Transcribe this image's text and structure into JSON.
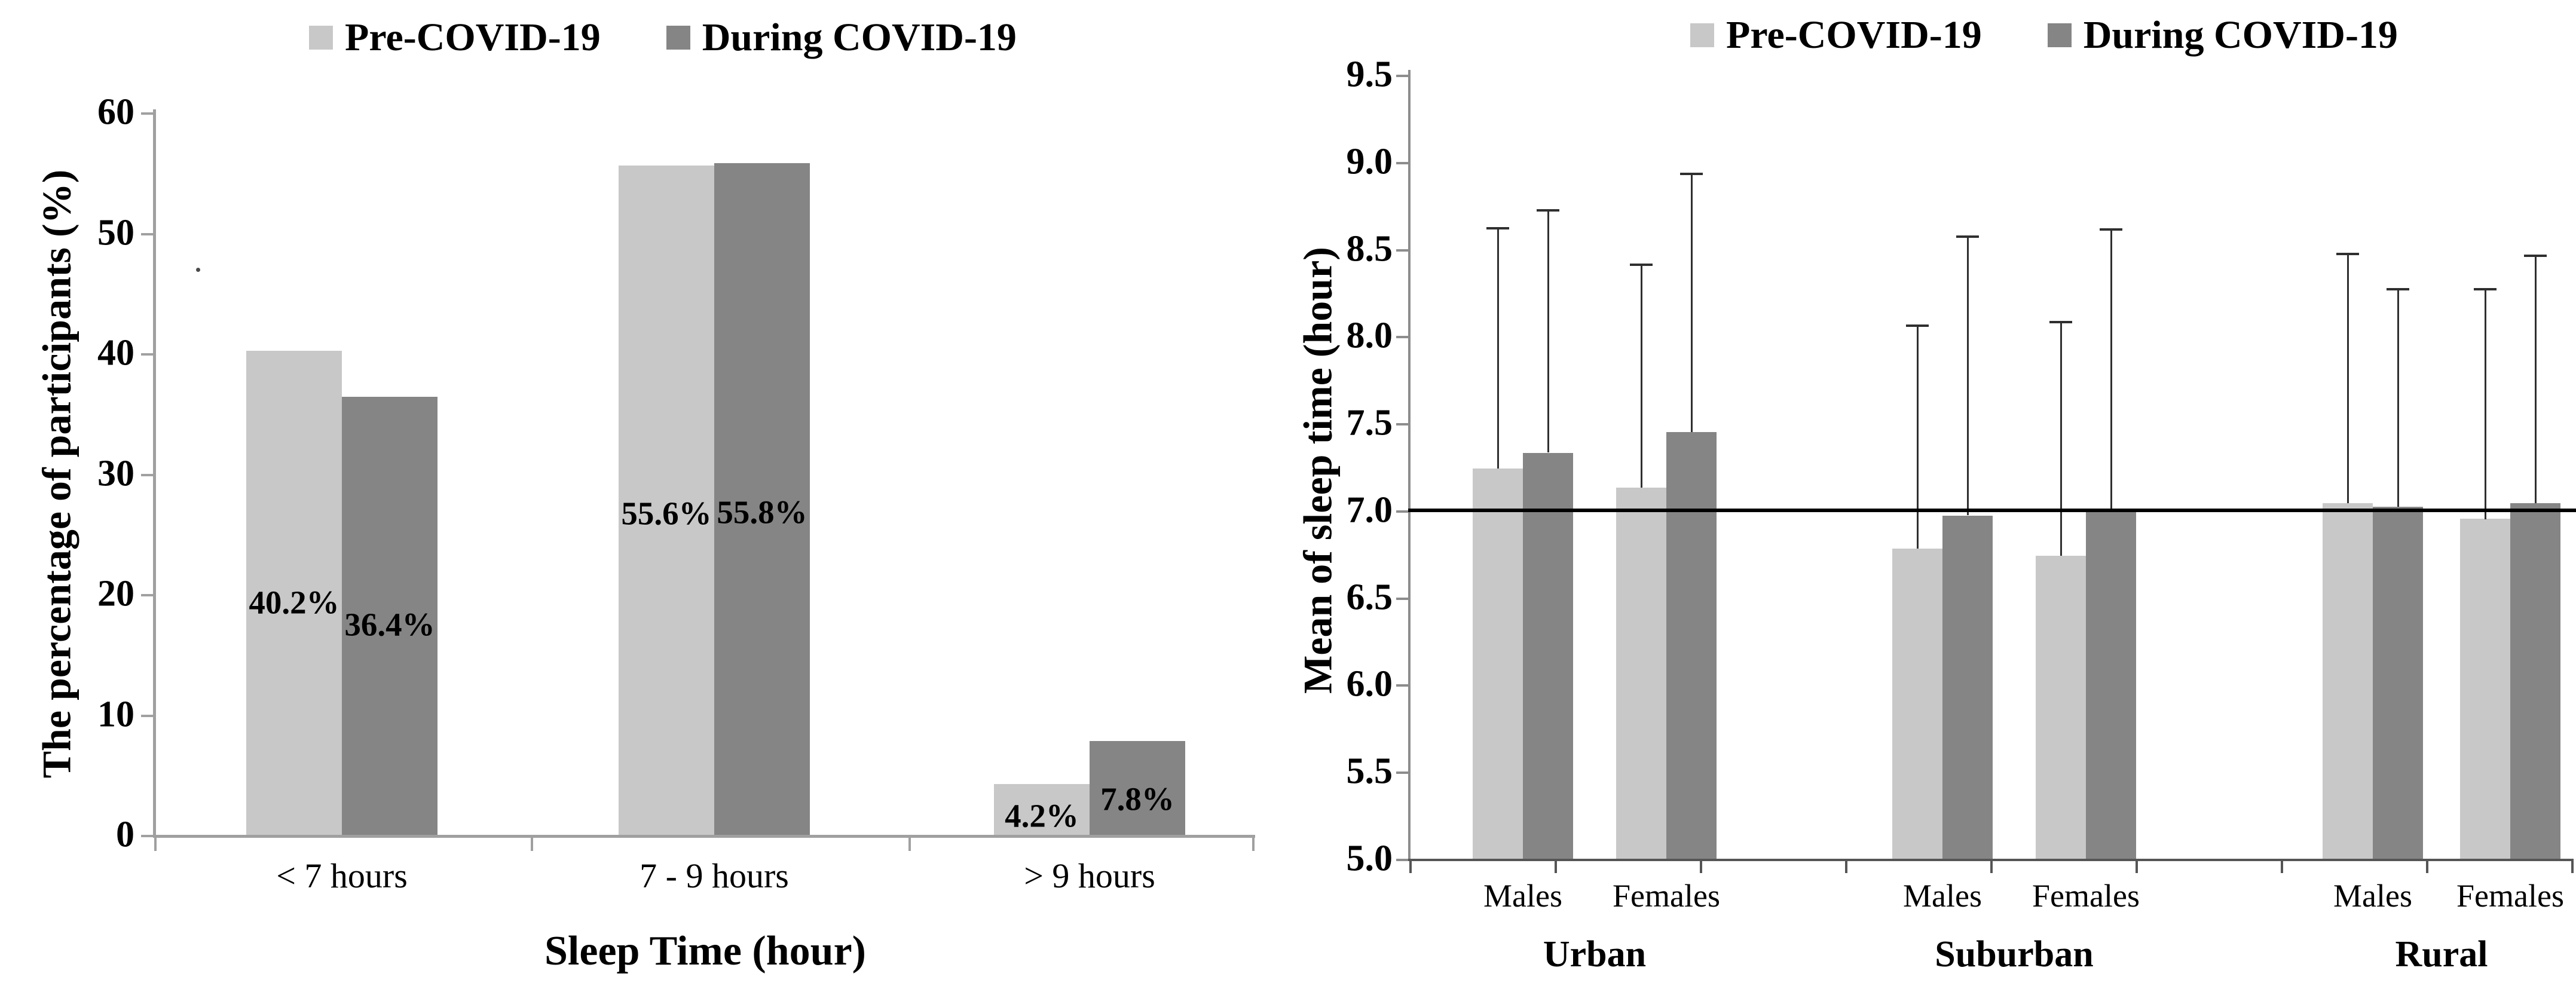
{
  "figure": {
    "background": "#ffffff"
  },
  "colors": {
    "pre_covid": "#c8c8c8",
    "during_covid": "#858585",
    "axis": "#a0a0a0",
    "error_bar": "#2f2f2f",
    "reference_line": "#000000",
    "text": "#000000"
  },
  "chart_data": [
    {
      "type": "bar",
      "panel": "left",
      "legend": [
        "Pre-COVID-19",
        "During COVID-19"
      ],
      "categories": [
        "< 7 hours",
        "7 - 9 hours",
        "> 9 hours"
      ],
      "series": [
        {
          "name": "Pre-COVID-19",
          "values": [
            40.2,
            55.6,
            4.2
          ],
          "labels": [
            "40.2%",
            "55.6%",
            "4.2%"
          ]
        },
        {
          "name": "During COVID-19",
          "values": [
            36.4,
            55.8,
            7.8
          ],
          "labels": [
            "36.4%",
            "55.8%",
            "7.8%"
          ]
        }
      ],
      "xlabel": "Sleep Time (hour)",
      "ylabel": "The percentage of participants (%)",
      "ylim": [
        0,
        60
      ],
      "ytick_step": 10,
      "yticks": [
        0,
        10,
        20,
        30,
        40,
        50,
        60
      ],
      "grid": false,
      "legend_position": "top"
    },
    {
      "type": "bar",
      "panel": "right",
      "legend": [
        "Pre-COVID-19",
        "During COVID-19"
      ],
      "groups": [
        "Urban",
        "Suburban",
        "Rural"
      ],
      "subcategories": [
        "Males",
        "Females",
        "Males",
        "Females",
        "Males",
        "Females"
      ],
      "categories": [
        "Urban Males",
        "Urban Females",
        "Suburban Males",
        "Suburban Females",
        "Rural Males",
        "Rural Females"
      ],
      "series": [
        {
          "name": "Pre-COVID-19",
          "values": [
            7.24,
            7.13,
            6.78,
            6.74,
            7.04,
            6.95
          ],
          "error_top": [
            8.62,
            8.41,
            8.06,
            8.08,
            8.47,
            8.27
          ]
        },
        {
          "name": "During COVID-19",
          "values": [
            7.33,
            7.45,
            6.97,
            7.0,
            7.02,
            7.04
          ],
          "error_top": [
            8.72,
            8.93,
            8.57,
            8.61,
            8.27,
            8.46
          ]
        }
      ],
      "xlabel": "",
      "ylabel": "Mean of sleep time (hour)",
      "ylim": [
        5.0,
        9.5
      ],
      "ytick_step": 0.5,
      "yticks": [
        5.0,
        5.5,
        6.0,
        6.5,
        7.0,
        7.5,
        8.0,
        8.5,
        9.0,
        9.5
      ],
      "reference_line": 7.0,
      "grid": false,
      "legend_position": "top"
    }
  ]
}
